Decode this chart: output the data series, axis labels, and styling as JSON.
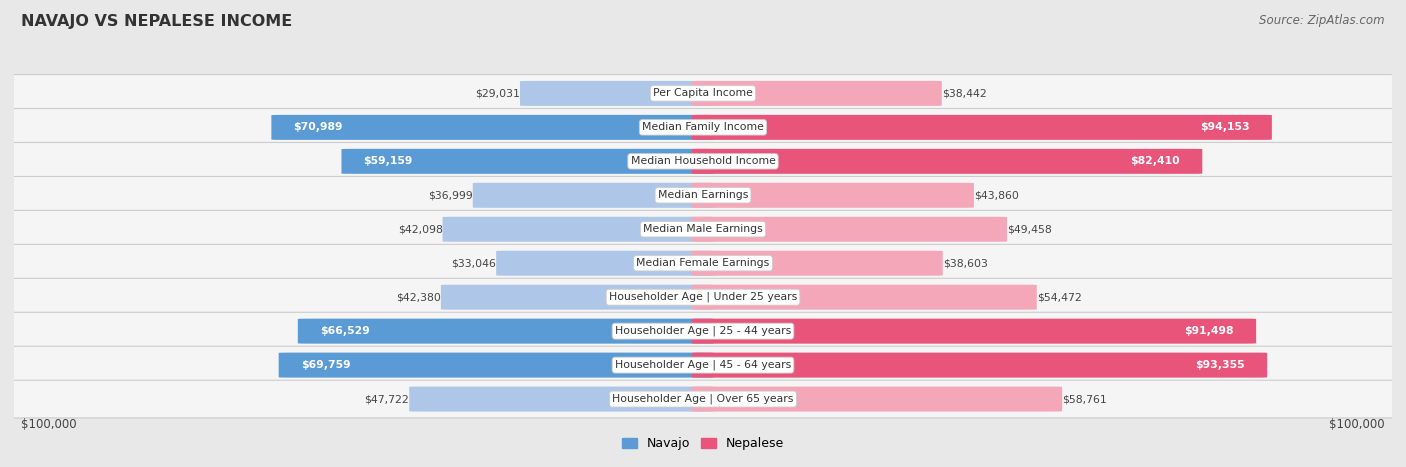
{
  "title": "NAVAJO VS NEPALESE INCOME",
  "source": "Source: ZipAtlas.com",
  "categories": [
    "Per Capita Income",
    "Median Family Income",
    "Median Household Income",
    "Median Earnings",
    "Median Male Earnings",
    "Median Female Earnings",
    "Householder Age | Under 25 years",
    "Householder Age | 25 - 44 years",
    "Householder Age | 45 - 64 years",
    "Householder Age | Over 65 years"
  ],
  "navajo_values": [
    29031,
    70989,
    59159,
    36999,
    42098,
    33046,
    42380,
    66529,
    69759,
    47722
  ],
  "nepalese_values": [
    38442,
    94153,
    82410,
    43860,
    49458,
    38603,
    54472,
    91498,
    93355,
    58761
  ],
  "navajo_labels": [
    "$29,031",
    "$70,989",
    "$59,159",
    "$36,999",
    "$42,098",
    "$33,046",
    "$42,380",
    "$66,529",
    "$69,759",
    "$47,722"
  ],
  "nepalese_labels": [
    "$38,442",
    "$94,153",
    "$82,410",
    "$43,860",
    "$49,458",
    "$38,603",
    "$54,472",
    "$91,498",
    "$93,355",
    "$58,761"
  ],
  "navajo_dark": [
    false,
    true,
    true,
    false,
    false,
    false,
    false,
    true,
    true,
    false
  ],
  "nepalese_dark": [
    false,
    true,
    true,
    false,
    false,
    false,
    false,
    true,
    true,
    false
  ],
  "navajo_color_light": "#aec6e8",
  "navajo_color_dark": "#5b9bd5",
  "nepalese_color_light": "#f4a7b9",
  "nepalese_color_dark": "#e8547a",
  "max_value": 100000,
  "legend_navajo_color": "#5b9bd5",
  "legend_nepalese_color": "#e8547a",
  "background_color": "#e8e8e8",
  "row_bg_color": "#f5f5f5",
  "row_border_color": "#cccccc"
}
